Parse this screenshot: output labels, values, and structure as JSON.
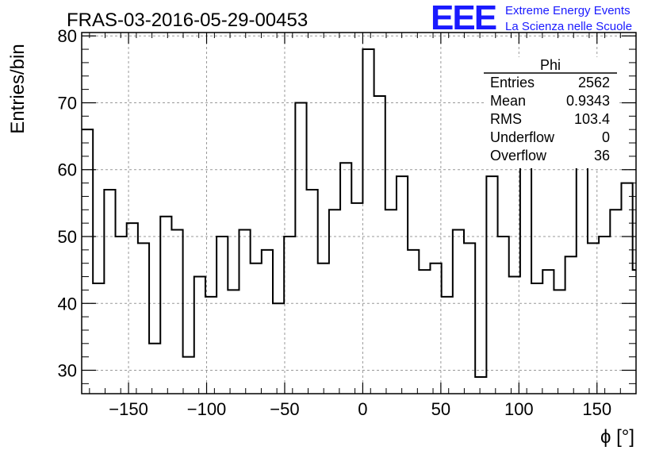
{
  "colors": {
    "logo": "#1a1aff",
    "histogram": "#000000",
    "grid": "#999999"
  },
  "header": {
    "title": "FRAS-03-2016-05-29-00453",
    "logo_mark": "EEE",
    "logo_line1": "Extreme Energy Events",
    "logo_line2": "La Scienza nelle Scuole"
  },
  "stats": {
    "name": "Phi",
    "rows": [
      {
        "label": "Entries",
        "value": "2562"
      },
      {
        "label": "Mean",
        "value": "0.9343"
      },
      {
        "label": "RMS",
        "value": "103.4"
      },
      {
        "label": "Underflow",
        "value": "0"
      },
      {
        "label": "Overflow",
        "value": "36"
      }
    ]
  },
  "chart_data": {
    "type": "histogram",
    "title": "FRAS-03-2016-05-29-00453",
    "xlabel": "ϕ [°]",
    "ylabel": "Entries/bin",
    "xlim": [
      -180,
      175
    ],
    "ylim": [
      26.5,
      80.5
    ],
    "grid": true,
    "xticks": [
      -150,
      -100,
      -50,
      0,
      50,
      100,
      150
    ],
    "xtick_labels": [
      "−150",
      "−100",
      "−50",
      "0",
      "50",
      "100",
      "150"
    ],
    "yticks": [
      30,
      40,
      50,
      60,
      70,
      80
    ],
    "ytick_labels": [
      "30",
      "40",
      "50",
      "60",
      "70",
      "80"
    ],
    "bin_start": -180,
    "bin_width": 7.2,
    "values": [
      66,
      43,
      57,
      50,
      52,
      49,
      34,
      53,
      51,
      32,
      44,
      41,
      50,
      42,
      51,
      46,
      48,
      40,
      50,
      70,
      57,
      46,
      54,
      61,
      55,
      78,
      71,
      54,
      59,
      48,
      45,
      46,
      41,
      51,
      49,
      29,
      59,
      50,
      44,
      61,
      43,
      45,
      42,
      47,
      66,
      49,
      50,
      54,
      58,
      45
    ]
  }
}
